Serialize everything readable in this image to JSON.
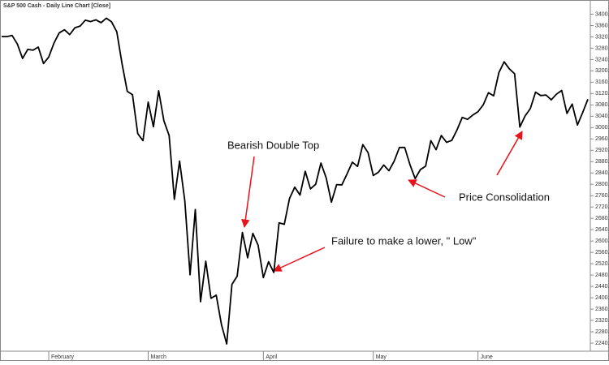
{
  "chart_data": {
    "type": "line",
    "title": "S&P 500 Cash - Daily Line Chart [Close]",
    "categories": [
      null,
      null,
      null,
      null,
      null,
      null,
      null,
      null,
      null,
      "February",
      null,
      null,
      null,
      null,
      null,
      null,
      null,
      null,
      null,
      null,
      null,
      null,
      null,
      null,
      null,
      null,
      null,
      null,
      "March",
      null,
      null,
      null,
      null,
      null,
      null,
      null,
      null,
      null,
      null,
      null,
      null,
      null,
      null,
      null,
      null,
      null,
      null,
      null,
      null,
      null,
      "April",
      null,
      null,
      null,
      null,
      null,
      null,
      null,
      null,
      null,
      null,
      null,
      null,
      null,
      null,
      null,
      null,
      null,
      null,
      null,
      null,
      "May",
      null,
      null,
      null,
      null,
      null,
      null,
      null,
      null,
      null,
      null,
      null,
      null,
      null,
      null,
      null,
      null,
      null,
      null,
      null,
      "June",
      null,
      null,
      null,
      null,
      null,
      null,
      null,
      null,
      null,
      null,
      null,
      null,
      null,
      null,
      null,
      null,
      null,
      null,
      null,
      null,
      null
    ],
    "values": [
      3321,
      3321,
      3325,
      3295,
      3244,
      3276,
      3273,
      3284,
      3226,
      3249,
      3298,
      3334,
      3345,
      3328,
      3352,
      3358,
      3379,
      3374,
      3380,
      3370,
      3386,
      3373,
      3338,
      3226,
      3128,
      3116,
      2979,
      2954,
      3090,
      3003,
      3130,
      3024,
      2972,
      2747,
      2882,
      2741,
      2481,
      2711,
      2386,
      2529,
      2398,
      2409,
      2305,
      2237,
      2447,
      2476,
      2630,
      2541,
      2627,
      2585,
      2471,
      2527,
      2489,
      2664,
      2659,
      2750,
      2790,
      2762,
      2846,
      2784,
      2800,
      2875,
      2823,
      2737,
      2799,
      2798,
      2837,
      2878,
      2863,
      2940,
      2912,
      2831,
      2843,
      2868,
      2848,
      2882,
      2930,
      2930,
      2870,
      2820,
      2852,
      2864,
      2954,
      2922,
      2972,
      2948,
      2955,
      2992,
      3036,
      3029,
      3044,
      3056,
      3080,
      3123,
      3112,
      3194,
      3232,
      3207,
      3190,
      3002,
      3041,
      3067,
      3125,
      3113,
      3115,
      3098,
      3118,
      3131,
      3050,
      3083,
      3009,
      3053,
      3100
    ],
    "color": "#000000",
    "ylim": [
      2220,
      3450
    ],
    "yticks": [
      {
        "value": 2240,
        "label": "2240.00"
      },
      {
        "value": 2280,
        "label": "2280.00"
      },
      {
        "value": 2320,
        "label": "2320.00"
      },
      {
        "value": 2360,
        "label": "2360.00"
      },
      {
        "value": 2400,
        "label": "2400.00"
      },
      {
        "value": 2440,
        "label": "2440.00"
      },
      {
        "value": 2480,
        "label": "2480.00"
      },
      {
        "value": 2520,
        "label": "2520.00"
      },
      {
        "value": 2560,
        "label": "2560.00"
      },
      {
        "value": 2600,
        "label": "2600.00"
      },
      {
        "value": 2640,
        "label": "2640.00"
      },
      {
        "value": 2680,
        "label": "2680.00"
      },
      {
        "value": 2720,
        "label": "2720.00"
      },
      {
        "value": 2760,
        "label": "2760.00"
      },
      {
        "value": 2800,
        "label": "2800.00"
      },
      {
        "value": 2840,
        "label": "2840.00"
      },
      {
        "value": 2880,
        "label": "2880.00"
      },
      {
        "value": 2920,
        "label": "2920.00"
      },
      {
        "value": 2960,
        "label": "2960.00"
      },
      {
        "value": 3000,
        "label": "3000.00"
      },
      {
        "value": 3040,
        "label": "3040.00"
      },
      {
        "value": 3080,
        "label": "3080.00"
      },
      {
        "value": 3120,
        "label": "3120.00"
      },
      {
        "value": 3160,
        "label": "3160.00"
      },
      {
        "value": 3200,
        "label": "3200.00"
      },
      {
        "value": 3240,
        "label": "3240.00"
      },
      {
        "value": 3280,
        "label": "3280.00"
      },
      {
        "value": 3320,
        "label": "3320.00"
      },
      {
        "value": 3360,
        "label": "3360.00"
      },
      {
        "value": 3400,
        "label": "3400.00"
      }
    ],
    "grid": false,
    "annotations": [
      "Bearish Double Top",
      "Failure to make a lower, \" Low\"",
      "Price Consolidation"
    ]
  }
}
